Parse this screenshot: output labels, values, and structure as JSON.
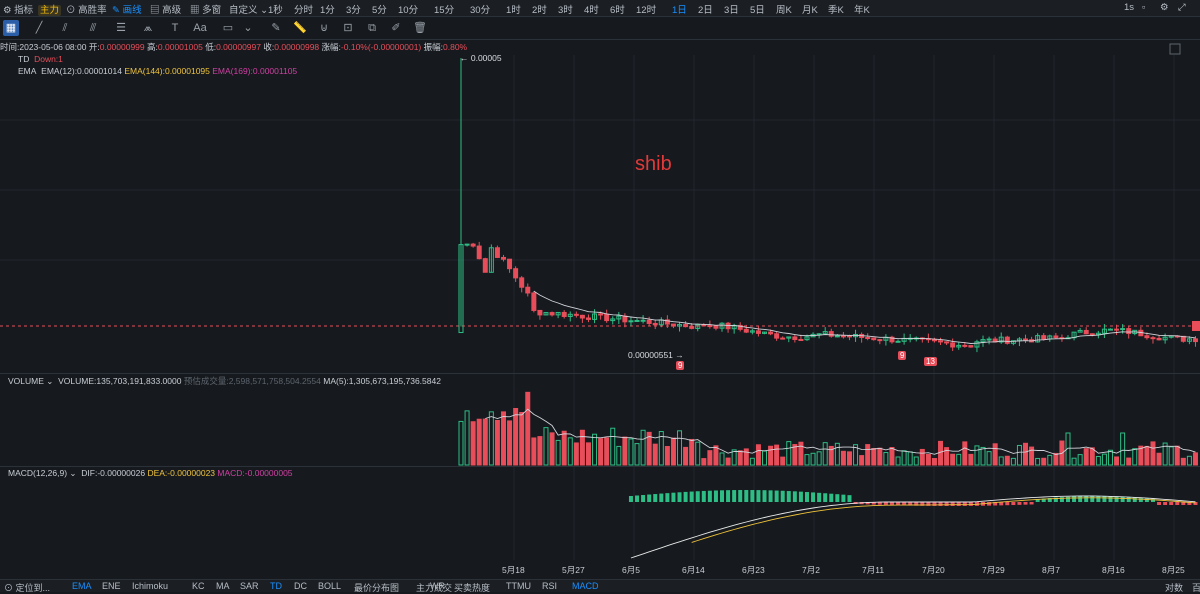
{
  "topbar": {
    "left": [
      {
        "name": "indicator-menu",
        "label": "指标"
      },
      {
        "name": "main-badge",
        "label": "主力"
      },
      {
        "name": "win-rate",
        "label": "高胜率"
      },
      {
        "name": "draw-lines",
        "label": "画线"
      },
      {
        "name": "advanced",
        "label": "高级"
      },
      {
        "name": "multi-window",
        "label": "多窗"
      },
      {
        "name": "custom",
        "label": "自定义"
      }
    ],
    "intervals": [
      "1秒",
      "分时",
      "1分",
      "3分",
      "5分",
      "10分",
      "15分",
      "30分",
      "1时",
      "2时",
      "3时",
      "4时",
      "6时",
      "12时",
      "1日",
      "2日",
      "3日",
      "5日",
      "周K",
      "月K",
      "季K",
      "年K"
    ],
    "active_interval": "1日",
    "right_interval": "1s"
  },
  "info_bar": {
    "time": "时间:2023-05-06 08:00",
    "open_label": "开:",
    "open": "0.00000999",
    "high_label": "高:",
    "high": "0.00001005",
    "low_label": "低:",
    "low": "0.00000997",
    "close_label": "收:",
    "close": "0.00000998",
    "change_label": "涨幅:",
    "change": "-0.10%(-0.00000001)",
    "amp_label": "振幅:",
    "amp": "0.80%"
  },
  "legend": {
    "td": "TD",
    "td_value": "Down:1",
    "ema": "EMA",
    "ema12": "EMA(12):0.00001014",
    "ema144": "EMA(144):0.00001095",
    "ema169": "EMA(169):0.00001105"
  },
  "annotations": {
    "high_price": "← 0.00005",
    "low_price": "0.00000551 →",
    "watermark": "shib",
    "td_counts": [
      "9",
      "9",
      "13"
    ]
  },
  "volume": {
    "label": "VOLUME",
    "value": "VOLUME:135,703,191,833.0000",
    "estimate": "预估成交量:2,598,571,758,504.2554",
    "ma5": "MA(5):1,305,673,195,736.5842"
  },
  "macd": {
    "label": "MACD(12,26,9)",
    "dif": "DIF:-0.00000026",
    "dea": "DEA:-0.00000023",
    "macd": "MACD:-0.00000005"
  },
  "x_axis": [
    "5月18",
    "5月27",
    "6月5",
    "6月14",
    "6月23",
    "7月2",
    "7月11",
    "7月20",
    "7月29",
    "8月7",
    "8月16",
    "8月25"
  ],
  "bottombar": {
    "left": "定位到...",
    "indicators": [
      "EMA",
      "ENE",
      "Ichimoku",
      "KC",
      "MA",
      "SAR",
      "TD",
      "DC",
      "BOLL",
      "最价分布图",
      "主力成交"
    ],
    "sub_indicators": [
      "WR",
      "买卖热度",
      "TTMU",
      "RSI",
      "MACD"
    ],
    "right": [
      "对数",
      "百"
    ]
  },
  "colors": {
    "up": "#2ebd85",
    "down": "#e84d5a",
    "ema": "#d0d4da",
    "dea": "#f0c33c",
    "accent": "#1890ff"
  },
  "chart_data": {
    "type": "candlestick",
    "title": "shib",
    "x": [
      "5月18",
      "5月27",
      "6月5",
      "6月14",
      "6月23",
      "7月2",
      "7月11",
      "7月20",
      "7月29",
      "8月7",
      "8月16",
      "8月25"
    ],
    "price_range": [
      5.5e-06,
      5e-05
    ],
    "marked_high": 5e-05,
    "marked_low": 5.51e-06
  }
}
